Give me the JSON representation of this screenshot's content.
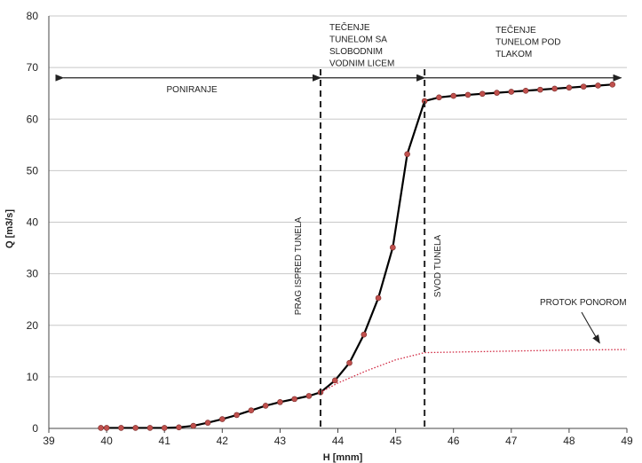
{
  "chart_data": {
    "type": "line",
    "title": "",
    "xlabel": "H [mnm]",
    "ylabel": "Q [m3/s]",
    "xlim": [
      39,
      49
    ],
    "ylim": [
      0,
      80
    ],
    "x_ticks": [
      39,
      40,
      41,
      42,
      43,
      44,
      45,
      46,
      47,
      48,
      49
    ],
    "y_ticks": [
      0,
      10,
      20,
      30,
      40,
      50,
      60,
      70,
      80
    ],
    "grid": "horizontal",
    "series": [
      {
        "color": "#000000",
        "marker_color": "#c0504d",
        "x": [
          39.9,
          40.0,
          40.25,
          40.5,
          40.75,
          41.0,
          41.25,
          41.5,
          41.75,
          42.0,
          42.25,
          42.5,
          42.75,
          43.0,
          43.25,
          43.5,
          43.7,
          43.95,
          44.2,
          44.45,
          44.7,
          44.95,
          45.2,
          45.5,
          45.75,
          46.0,
          46.25,
          46.5,
          46.75,
          47.0,
          47.25,
          47.5,
          47.75,
          48.0,
          48.25,
          48.5,
          48.75
        ],
        "y": [
          0.1,
          0.1,
          0.1,
          0.1,
          0.1,
          0.1,
          0.2,
          0.5,
          1.1,
          1.8,
          2.6,
          3.5,
          4.4,
          5.1,
          5.7,
          6.3,
          7.0,
          9.3,
          12.7,
          18.2,
          25.3,
          35.1,
          53.2,
          63.5,
          64.2,
          64.5,
          64.7,
          64.9,
          65.1,
          65.3,
          65.5,
          65.7,
          65.9,
          66.1,
          66.3,
          66.5,
          66.7
        ]
      },
      {
        "name": "PROTOK PONOROM",
        "color": "#d0253f",
        "style": "dotted",
        "x": [
          43.7,
          44.0,
          44.5,
          45.0,
          45.5,
          46.0,
          47.0,
          48.0,
          49.0
        ],
        "y": [
          7.0,
          8.8,
          11.2,
          13.3,
          14.7,
          14.8,
          15.0,
          15.2,
          15.3
        ]
      }
    ],
    "vertical_lines": [
      {
        "x": 43.7,
        "label": "PRAG ISPRED TUNELA"
      },
      {
        "x": 45.5,
        "label": "SVOD TUNELA"
      }
    ],
    "regions": [
      {
        "label": [
          "PONIRANJE"
        ],
        "from": 39.25,
        "to": 43.7,
        "y": 68
      },
      {
        "label": [
          "TEČENJE",
          "TUNELOM SA",
          "SLOBODNIM",
          "VODNIM LICEM"
        ],
        "from": 43.7,
        "to": 45.5,
        "y": 68
      },
      {
        "label": [
          "TEČENJE",
          "TUNELOM POD",
          "TLAKOM"
        ],
        "from": 45.5,
        "to": 48.9,
        "y": 68
      }
    ],
    "annotations": [
      {
        "text": "PROTOK PONOROM",
        "points_to": [
          47.3,
          15.0
        ]
      }
    ]
  }
}
